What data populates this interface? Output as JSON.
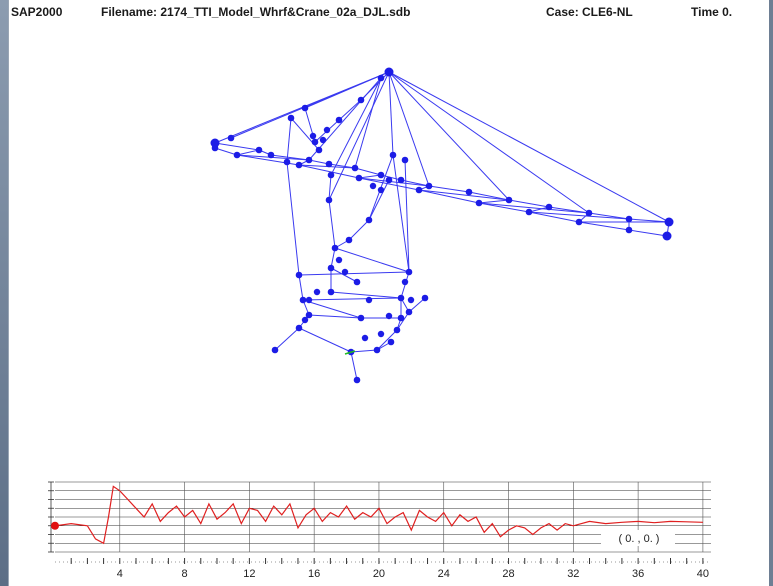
{
  "title_bar": {
    "app_name": "SAP2000",
    "filename": "Filename: 2174_TTI_Model_Whrf&Crane_02a_DJL.sdb",
    "case": "Case: CLE6-NL",
    "time": "Time 0."
  },
  "model_view": {
    "description_color": "#2b2bf0",
    "joint_color": "#1c1ce6",
    "axis_color": "#22bb22"
  },
  "time_history_plot": {
    "cursor_readout": "( 0. , 0. )",
    "x_tick_labels": [
      "4",
      "8",
      "12",
      "16",
      "20",
      "24",
      "28",
      "32",
      "36",
      "40"
    ],
    "trace_color": "#e02020",
    "marker_color": "#e01010"
  },
  "chart_data": {
    "type": "line",
    "x": [
      0,
      1,
      2,
      2.5,
      3,
      3.3,
      3.6,
      4,
      4.5,
      5,
      5.5,
      6,
      6.5,
      7,
      7.5,
      8,
      8.5,
      9,
      9.5,
      10,
      10.5,
      11,
      11.5,
      12,
      12.5,
      13,
      13.5,
      14,
      14.5,
      15,
      15.5,
      16,
      16.5,
      17,
      17.5,
      18,
      18.5,
      19,
      19.5,
      20,
      20.5,
      21,
      21.5,
      22,
      22.5,
      23,
      23.5,
      24,
      24.5,
      25,
      25.5,
      26,
      26.5,
      27,
      27.5,
      28,
      28.5,
      29,
      29.5,
      30,
      30.5,
      31,
      31.5,
      32,
      33,
      34,
      35,
      36,
      37,
      38,
      39,
      40
    ],
    "series": [
      {
        "values": [
          0,
          0.05,
          0,
          -0.3,
          -0.4,
          0.2,
          0.9,
          0.8,
          0.6,
          0.4,
          0.2,
          0.5,
          0.1,
          0.3,
          0.45,
          0.2,
          0.35,
          0.05,
          0.5,
          0.15,
          0.3,
          0.5,
          0.05,
          0.4,
          0.35,
          0.1,
          0.45,
          0.25,
          0.5,
          -0.05,
          0.25,
          0.4,
          0.1,
          0.3,
          0.2,
          0.45,
          0.15,
          0.3,
          0.2,
          0.4,
          0.05,
          0.2,
          0.3,
          -0.1,
          0.35,
          0.2,
          0.1,
          0.3,
          0.0,
          0.25,
          0.1,
          0.2,
          -0.15,
          0.05,
          -0.25,
          -0.1,
          0.0,
          -0.05,
          -0.2,
          -0.05,
          0.05,
          -0.1,
          0.05,
          0.0,
          0.1,
          0.05,
          0.08,
          0.1,
          0.07,
          0.1,
          0.09,
          0.08
        ]
      }
    ],
    "xlim": [
      0,
      40.5
    ],
    "ylim": [
      -0.6,
      1.0
    ],
    "x_ticks": [
      4,
      8,
      12,
      16,
      20,
      24,
      28,
      32,
      36,
      40
    ],
    "grid": true
  }
}
